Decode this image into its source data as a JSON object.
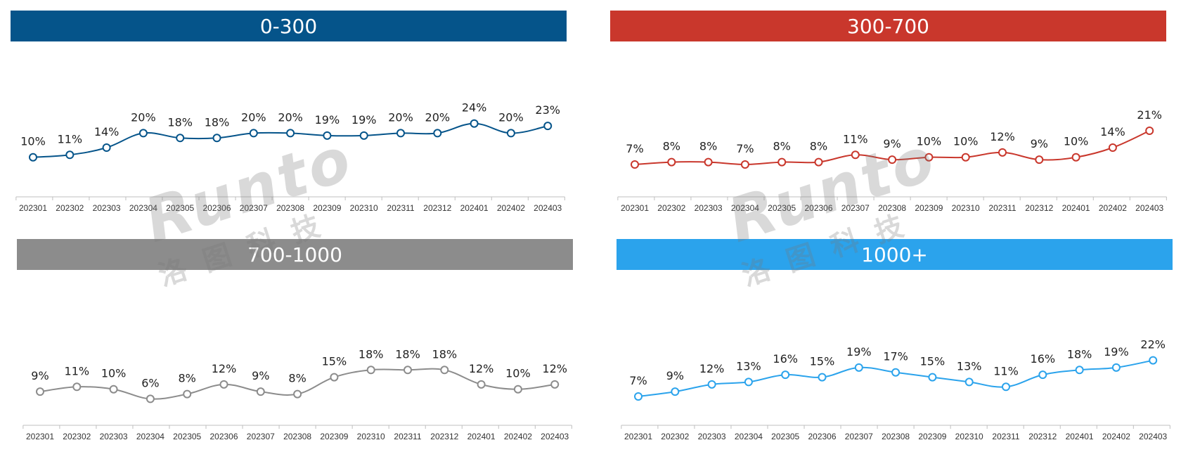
{
  "watermark": {
    "latin": "Runto",
    "cjk": "洛图科技"
  },
  "chart_data": [
    {
      "type": "line",
      "title": "0-300",
      "color": "#05548A",
      "categories": [
        "202301",
        "202302",
        "202303",
        "202304",
        "202305",
        "202306",
        "202307",
        "202308",
        "202309",
        "202310",
        "202311",
        "202312",
        "202401",
        "202402",
        "202403"
      ],
      "series": [
        {
          "values": [
            10,
            11,
            14,
            20,
            18,
            18,
            20,
            20,
            19,
            19,
            20,
            20,
            24,
            20,
            23
          ]
        }
      ],
      "value_suffix": "%"
    },
    {
      "type": "line",
      "title": "300-700",
      "color": "#C9372C",
      "categories": [
        "202301",
        "202302",
        "202303",
        "202304",
        "202305",
        "202306",
        "202307",
        "202308",
        "202309",
        "202310",
        "202311",
        "202312",
        "202401",
        "202402",
        "202403"
      ],
      "series": [
        {
          "values": [
            7,
            8,
            8,
            7,
            8,
            8,
            11,
            9,
            10,
            10,
            12,
            9,
            10,
            14,
            21
          ]
        }
      ],
      "value_suffix": "%"
    },
    {
      "type": "line",
      "title": "700-1000",
      "color": "#8C8C8C",
      "categories": [
        "202301",
        "202302",
        "202303",
        "202304",
        "202305",
        "202306",
        "202307",
        "202308",
        "202309",
        "202310",
        "202311",
        "202312",
        "202401",
        "202402",
        "202403"
      ],
      "series": [
        {
          "values": [
            9,
            11,
            10,
            6,
            8,
            12,
            9,
            8,
            15,
            18,
            18,
            18,
            12,
            10,
            12
          ]
        }
      ],
      "value_suffix": "%"
    },
    {
      "type": "line",
      "title": "1000+",
      "color": "#2BA3EC",
      "categories": [
        "202301",
        "202302",
        "202303",
        "202304",
        "202305",
        "202306",
        "202307",
        "202308",
        "202309",
        "202310",
        "202311",
        "202312",
        "202401",
        "202402",
        "202403"
      ],
      "series": [
        {
          "values": [
            7,
            9,
            12,
            13,
            16,
            15,
            19,
            17,
            15,
            13,
            11,
            16,
            18,
            19,
            22
          ]
        }
      ],
      "value_suffix": "%"
    }
  ]
}
